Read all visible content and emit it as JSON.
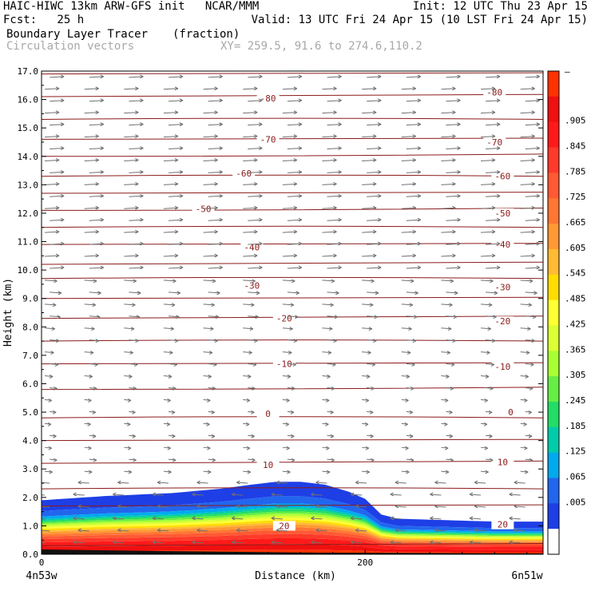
{
  "header": {
    "line1_left": "HAIC-HIWC 13km ARW-GFS init   NCAR/MMM",
    "line1_right": "Init: 12 UTC Thu 23 Apr 15",
    "line2_left": "Fcst:   25 h",
    "line2_right": "Valid: 13 UTC Fri 24 Apr 15 (10 LST Fri 24 Apr 15)",
    "line3_field": "Boundary Layer Tracer",
    "line3_units": "(fraction)",
    "line4_field": "Circulation vectors",
    "line4_coords": "XY= 259.5, 91.6 to 274.6,110.2"
  },
  "chart_data": {
    "type": "heatmap",
    "xlabel": "Distance (km)",
    "ylabel": "Height (km)",
    "xlim": [
      0,
      310
    ],
    "ylim": [
      0,
      17
    ],
    "x_ticks": [
      0,
      200
    ],
    "y_ticks": [
      "0.0",
      "1.0",
      "2.0",
      "3.0",
      "4.0",
      "5.0",
      "6.0",
      "7.0",
      "8.0",
      "9.0",
      "10.0",
      "11.0",
      "12.0",
      "13.0",
      "14.0",
      "15.0",
      "16.0",
      "17.0"
    ],
    "x_left_label": "4n53w",
    "x_right_label": "6n51w",
    "colorbar_labels": [
      "–",
      ".905",
      ".845",
      ".785",
      ".725",
      ".665",
      ".605",
      ".545",
      ".485",
      ".425",
      ".365",
      ".305",
      ".245",
      ".185",
      ".125",
      ".065",
      ".005"
    ],
    "colorbar_colors": [
      "#ff3300",
      "#f01010",
      "#ff1a1a",
      "#ff3a2a",
      "#ff5a33",
      "#ff7733",
      "#ff9933",
      "#ffbb33",
      "#ffdd00",
      "#ffff33",
      "#ddff33",
      "#aaff33",
      "#66ee44",
      "#22dd66",
      "#00ccaa",
      "#00aaee",
      "#2266ee",
      "#1e3fe6",
      "#ffffff"
    ],
    "tracer_top_km": [
      [
        0,
        1.9
      ],
      [
        40,
        2.05
      ],
      [
        80,
        2.15
      ],
      [
        110,
        2.3
      ],
      [
        130,
        2.45
      ],
      [
        145,
        2.55
      ],
      [
        160,
        2.55
      ],
      [
        175,
        2.45
      ],
      [
        190,
        2.2
      ],
      [
        200,
        1.95
      ],
      [
        210,
        1.4
      ],
      [
        220,
        1.25
      ],
      [
        250,
        1.2
      ],
      [
        280,
        1.15
      ],
      [
        310,
        1.15
      ]
    ],
    "temperature_contours": [
      {
        "label": "-80",
        "y": [
          16.05,
          16.25
        ]
      },
      {
        "label": "-70",
        "y": [
          14.6,
          14.5
        ]
      },
      {
        "label": "-60",
        "y": [
          13.4,
          13.3
        ]
      },
      {
        "label": "-50",
        "y": [
          12.15,
          12.0
        ]
      },
      {
        "label": "-40",
        "y": [
          10.8,
          10.9
        ]
      },
      {
        "label": "-30",
        "y": [
          9.45,
          9.4
        ]
      },
      {
        "label": "-20",
        "y": [
          8.3,
          8.2
        ]
      },
      {
        "label": "-10",
        "y": [
          6.7,
          6.6
        ]
      },
      {
        "label": "0",
        "y": [
          4.95,
          5.0
        ]
      },
      {
        "label": "10",
        "y": [
          3.15,
          3.25
        ]
      },
      {
        "label": "20",
        "y": [
          1.0,
          1.05
        ]
      }
    ],
    "contour_levels_km": [
      0.3,
      1.7,
      2.3,
      3.2,
      4.0,
      4.8,
      5.8,
      6.7,
      7.5,
      8.3,
      9.0,
      9.7,
      10.2,
      10.9,
      11.5,
      12.1,
      12.7,
      13.3,
      14.0,
      14.6,
      15.3,
      16.1,
      16.9
    ],
    "contour_label_x_km": [
      [
        140,
        280
      ],
      [
        140,
        280
      ],
      [
        125,
        285
      ],
      [
        100,
        285
      ],
      [
        130,
        285
      ],
      [
        130,
        285
      ],
      [
        150,
        285
      ],
      [
        150,
        285
      ],
      [
        140,
        290
      ],
      [
        140,
        285
      ],
      [
        150,
        285
      ]
    ],
    "colors": {
      "contour": "#8b1a1a",
      "vectors": "#707070",
      "axis": "#000000"
    }
  }
}
